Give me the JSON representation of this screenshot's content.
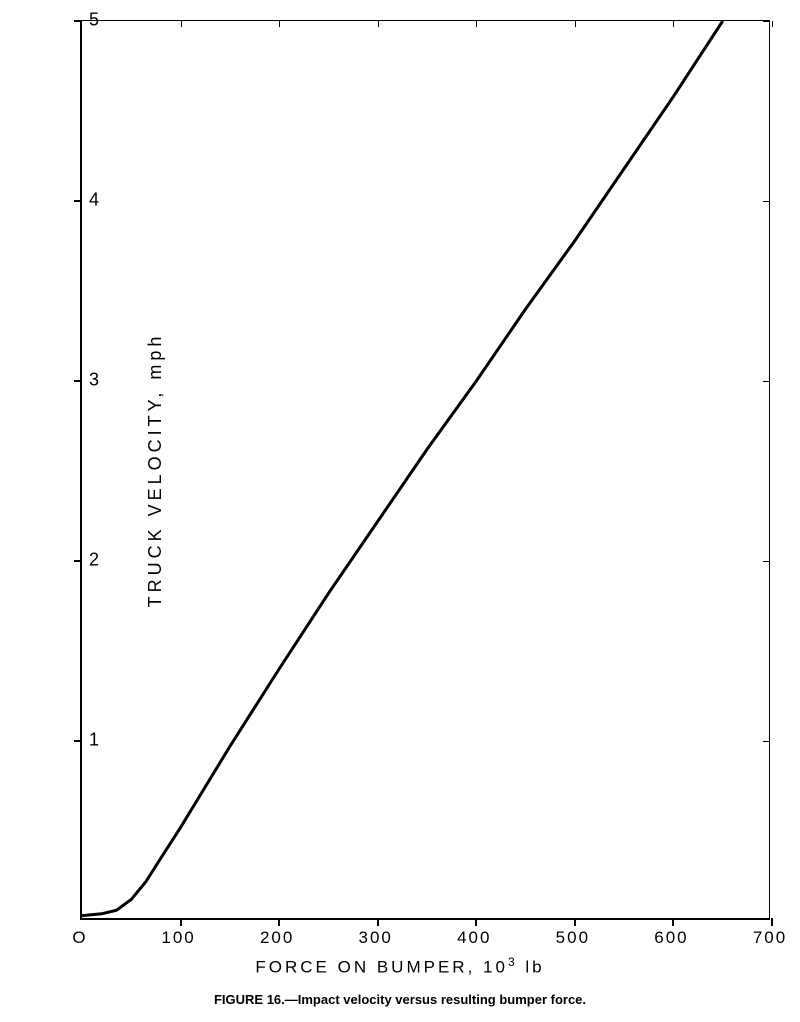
{
  "chart": {
    "type": "line",
    "xlim": [
      0,
      700
    ],
    "ylim": [
      0,
      5
    ],
    "xtick_step": 100,
    "ytick_step": 1,
    "x_ticks": [
      0,
      100,
      200,
      300,
      400,
      500,
      600,
      700
    ],
    "y_ticks": [
      0,
      1,
      2,
      3,
      4,
      5
    ],
    "x_tick_labels": [
      "O",
      "100",
      "200",
      "300",
      "400",
      "500",
      "600",
      "700"
    ],
    "y_tick_labels": [
      "",
      "1",
      "2",
      "3",
      "4",
      "5"
    ],
    "x_axis_label": "FORCE ON BUMPER, 10³ lb",
    "y_axis_label": "TRUCK VELOCITY, mph",
    "caption": "FIGURE 16.—Impact velocity versus resulting bumper force.",
    "background_color": "#ffffff",
    "axis_color": "#000000",
    "line_color": "#000000",
    "line_width": 3,
    "label_fontsize": 18,
    "tick_fontsize": 17,
    "caption_fontsize": 13,
    "data_points": [
      [
        0,
        0.03
      ],
      [
        20,
        0.04
      ],
      [
        35,
        0.06
      ],
      [
        50,
        0.12
      ],
      [
        65,
        0.22
      ],
      [
        80,
        0.35
      ],
      [
        100,
        0.52
      ],
      [
        120,
        0.7
      ],
      [
        150,
        0.97
      ],
      [
        200,
        1.4
      ],
      [
        250,
        1.82
      ],
      [
        300,
        2.22
      ],
      [
        350,
        2.62
      ],
      [
        400,
        3.0
      ],
      [
        450,
        3.4
      ],
      [
        500,
        3.78
      ],
      [
        550,
        4.18
      ],
      [
        600,
        4.58
      ],
      [
        650,
        5.0
      ]
    ]
  }
}
